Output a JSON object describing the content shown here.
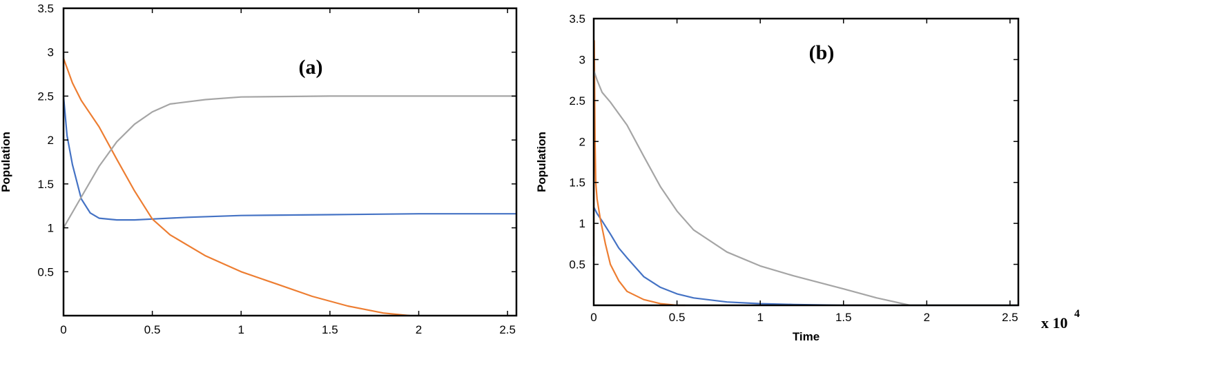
{
  "chart_data": [
    {
      "type": "line",
      "panel_label": "(a)",
      "xlabel": "",
      "ylabel": "Population",
      "xlim": [
        0,
        2.55
      ],
      "ylim": [
        0,
        3.5
      ],
      "xticks": [
        "0",
        "0.5",
        "1",
        "1.5",
        "2",
        "2.5"
      ],
      "xtick_values": [
        0,
        0.5,
        1,
        1.5,
        2,
        2.5
      ],
      "yticks": [
        "0.5",
        "1",
        "1.5",
        "2",
        "2.5",
        "3",
        "3.5"
      ],
      "ytick_values": [
        0.5,
        1,
        1.5,
        2,
        2.5,
        3,
        3.5
      ],
      "grid": false,
      "series": [
        {
          "color": "#4472C4",
          "x": [
            0,
            0.02,
            0.05,
            0.1,
            0.15,
            0.2,
            0.3,
            0.4,
            0.5,
            0.7,
            1.0,
            1.5,
            2.0,
            2.5,
            2.55
          ],
          "y": [
            2.5,
            2.05,
            1.72,
            1.33,
            1.17,
            1.11,
            1.09,
            1.09,
            1.1,
            1.12,
            1.14,
            1.15,
            1.16,
            1.16,
            1.16
          ]
        },
        {
          "color": "#ED7D31",
          "x": [
            0,
            0.05,
            0.1,
            0.2,
            0.3,
            0.4,
            0.5,
            0.6,
            0.8,
            1.0,
            1.2,
            1.4,
            1.6,
            1.8,
            1.95
          ],
          "y": [
            2.93,
            2.65,
            2.45,
            2.15,
            1.78,
            1.42,
            1.1,
            0.92,
            0.68,
            0.5,
            0.36,
            0.22,
            0.11,
            0.03,
            0.0
          ]
        },
        {
          "color": "#A5A5A5",
          "x": [
            0,
            0.1,
            0.2,
            0.3,
            0.4,
            0.5,
            0.6,
            0.8,
            1.0,
            1.5,
            2.0,
            2.55
          ],
          "y": [
            1.0,
            1.35,
            1.7,
            1.98,
            2.18,
            2.32,
            2.41,
            2.46,
            2.49,
            2.5,
            2.5,
            2.5
          ]
        }
      ]
    },
    {
      "type": "line",
      "panel_label": "(b)",
      "xlabel": "Time",
      "ylabel": "Population",
      "x_multiplier_base": "x 10",
      "x_multiplier_exp": "4",
      "xlim": [
        0,
        2.55
      ],
      "ylim": [
        0,
        3.5
      ],
      "xticks": [
        "0",
        "0.5",
        "1",
        "1.5",
        "2",
        "2.5"
      ],
      "xtick_values": [
        0,
        0.5,
        1,
        1.5,
        2,
        2.5
      ],
      "yticks": [
        "0.5",
        "1",
        "1.5",
        "2",
        "2.5",
        "3",
        "3.5"
      ],
      "ytick_values": [
        0.5,
        1,
        1.5,
        2,
        2.5,
        3,
        3.5
      ],
      "grid": false,
      "series": [
        {
          "color": "#4472C4",
          "x": [
            0,
            0.01,
            0.02,
            0.05,
            0.1,
            0.15,
            0.2,
            0.3,
            0.4,
            0.5,
            0.6,
            0.8,
            1.0,
            1.2,
            1.5,
            2.0,
            2.5,
            2.55
          ],
          "y": [
            1.2,
            1.16,
            1.12,
            1.03,
            0.87,
            0.7,
            0.58,
            0.35,
            0.22,
            0.14,
            0.09,
            0.04,
            0.02,
            0.01,
            0.0,
            0.0,
            0.0,
            0.0
          ]
        },
        {
          "color": "#ED7D31",
          "x": [
            0,
            0.003,
            0.008,
            0.012,
            0.02,
            0.04,
            0.07,
            0.1,
            0.15,
            0.2,
            0.3,
            0.4,
            0.5,
            0.55
          ],
          "y": [
            0.6,
            3.23,
            2.0,
            1.5,
            1.3,
            1.05,
            0.75,
            0.5,
            0.3,
            0.17,
            0.07,
            0.02,
            0.0,
            0.0
          ]
        },
        {
          "color": "#A5A5A5",
          "x": [
            0,
            0.02,
            0.05,
            0.1,
            0.2,
            0.3,
            0.4,
            0.5,
            0.6,
            0.8,
            1.0,
            1.2,
            1.5,
            1.7,
            1.9,
            2.0,
            2.55
          ],
          "y": [
            2.87,
            2.75,
            2.6,
            2.48,
            2.2,
            1.82,
            1.45,
            1.15,
            0.92,
            0.65,
            0.48,
            0.36,
            0.2,
            0.09,
            0.0,
            0.0,
            0.0
          ]
        }
      ]
    }
  ]
}
